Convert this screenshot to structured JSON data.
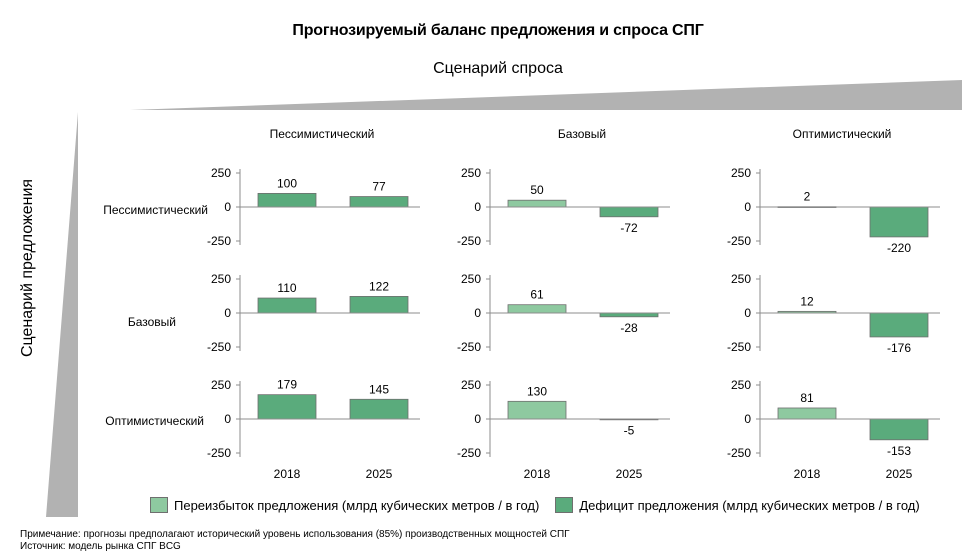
{
  "title": "Прогнозируемый баланс предложения и спроса СПГ",
  "demand_axis_title": "Сценарий спроса",
  "supply_axis_title": "Сценарий предложения",
  "demand_scenarios": [
    "Пессимистический",
    "Базовый",
    "Оптимистический"
  ],
  "supply_scenarios": [
    "Пессимистический",
    "Базовый",
    "Оптимистический"
  ],
  "legend": {
    "surplus": "Переизбыток предложения (млрд кубических метров / в год)",
    "deficit": "Дефицит предложения (млрд кубических метров / в год)"
  },
  "colors": {
    "surplus": "#8ec9a0",
    "deficit": "#5aab7c",
    "wedge": "#b2b2b2"
  },
  "note": "Примечание: прогнозы предполагают исторический уровень использования (85%) производственных мощностей СПГ",
  "source": "Источник: модель рынка СПГ BCG",
  "chart_data": {
    "type": "bar",
    "layout": "small-multiples 3x3",
    "categories": [
      "2018",
      "2025"
    ],
    "ylim": [
      -250,
      250
    ],
    "yticks": [
      250,
      0,
      -250
    ],
    "panels": [
      {
        "supply": "Пессимистический",
        "demand": "Пессимистический",
        "values": [
          100,
          77
        ],
        "kind": [
          "deficit",
          "deficit"
        ]
      },
      {
        "supply": "Пессимистический",
        "demand": "Базовый",
        "values": [
          50,
          -72
        ],
        "kind": [
          "surplus",
          "deficit"
        ]
      },
      {
        "supply": "Пессимистический",
        "demand": "Оптимистический",
        "values": [
          2,
          -220
        ],
        "kind": [
          "surplus",
          "deficit"
        ]
      },
      {
        "supply": "Базовый",
        "demand": "Пессимистический",
        "values": [
          110,
          122
        ],
        "kind": [
          "deficit",
          "deficit"
        ]
      },
      {
        "supply": "Базовый",
        "demand": "Базовый",
        "values": [
          61,
          -28
        ],
        "kind": [
          "surplus",
          "deficit"
        ]
      },
      {
        "supply": "Базовый",
        "demand": "Оптимистический",
        "values": [
          12,
          -176
        ],
        "kind": [
          "surplus",
          "deficit"
        ]
      },
      {
        "supply": "Оптимистический",
        "demand": "Пессимистический",
        "values": [
          179,
          145
        ],
        "kind": [
          "deficit",
          "deficit"
        ]
      },
      {
        "supply": "Оптимистический",
        "demand": "Базовый",
        "values": [
          130,
          -5
        ],
        "kind": [
          "surplus",
          "deficit"
        ]
      },
      {
        "supply": "Оптимистический",
        "demand": "Оптимистический",
        "values": [
          81,
          -153
        ],
        "kind": [
          "surplus",
          "deficit"
        ]
      }
    ]
  }
}
